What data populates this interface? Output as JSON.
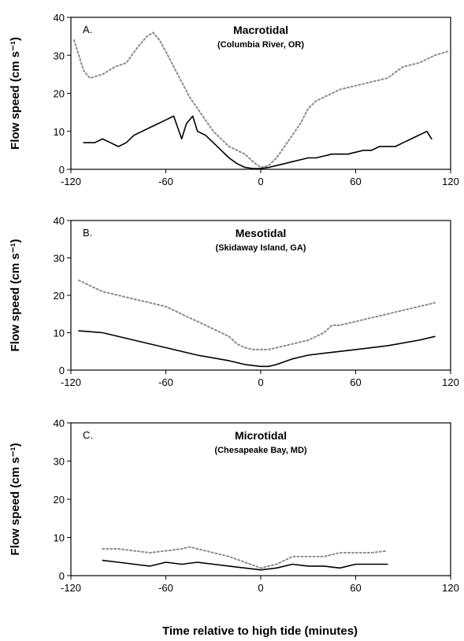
{
  "xlabel": "Time relative to high tide (minutes)",
  "chart_data": [
    {
      "type": "line",
      "letter": "A.",
      "title": "Macrotidal",
      "subtitle": "(Columbia River, OR)",
      "xlabel": "",
      "ylabel": "Flow speed (cm s⁻¹)",
      "xlim": [
        -120,
        120
      ],
      "ylim": [
        0,
        40
      ],
      "xticks": [
        -120,
        -60,
        0,
        60,
        120
      ],
      "yticks": [
        0,
        10,
        20,
        30,
        40
      ],
      "grid": false,
      "series": [
        {
          "style": "dotted",
          "color": "#8a8a8a",
          "x": [
            -118,
            -112,
            -108,
            -100,
            -92,
            -85,
            -78,
            -72,
            -68,
            -64,
            -60,
            -55,
            -50,
            -45,
            -40,
            -35,
            -30,
            -25,
            -20,
            -15,
            -10,
            -5,
            0,
            5,
            10,
            15,
            20,
            25,
            30,
            35,
            40,
            50,
            60,
            70,
            80,
            90,
            100,
            110,
            118
          ],
          "y": [
            34,
            26,
            24,
            25,
            27,
            28,
            32,
            35,
            36,
            34,
            31,
            27,
            23,
            19,
            16,
            13,
            10,
            8,
            6,
            5,
            4,
            2,
            0.5,
            1,
            3,
            6,
            9,
            12,
            16,
            18,
            19,
            21,
            22,
            23,
            24,
            27,
            28,
            30,
            31
          ]
        },
        {
          "style": "solid",
          "color": "#000000",
          "x": [
            -112,
            -105,
            -100,
            -95,
            -90,
            -85,
            -80,
            -75,
            -70,
            -65,
            -60,
            -55,
            -50,
            -47,
            -43,
            -40,
            -35,
            -30,
            -25,
            -20,
            -15,
            -10,
            -5,
            0,
            5,
            10,
            15,
            20,
            25,
            30,
            35,
            40,
            45,
            50,
            55,
            60,
            65,
            70,
            75,
            80,
            85,
            90,
            95,
            100,
            105,
            108
          ],
          "y": [
            7,
            7,
            8,
            7,
            6,
            7,
            9,
            10,
            11,
            12,
            13,
            14,
            8,
            12,
            14,
            10,
            9,
            7,
            5,
            3,
            1.5,
            0.5,
            0.2,
            0.2,
            0.5,
            1,
            1.5,
            2,
            2.5,
            3,
            3,
            3.5,
            4,
            4,
            4,
            4.5,
            5,
            5,
            6,
            6,
            6,
            7,
            8,
            9,
            10,
            8
          ]
        }
      ]
    },
    {
      "type": "line",
      "letter": "B.",
      "title": "Mesotidal",
      "subtitle": "(Skidaway Island, GA)",
      "xlabel": "",
      "ylabel": "Flow speed (cm s⁻¹)",
      "xlim": [
        -120,
        120
      ],
      "ylim": [
        0,
        40
      ],
      "xticks": [
        -120,
        -60,
        0,
        60,
        120
      ],
      "yticks": [
        0,
        10,
        20,
        30,
        40
      ],
      "grid": false,
      "series": [
        {
          "style": "dotted",
          "color": "#8a8a8a",
          "x": [
            -115,
            -110,
            -100,
            -90,
            -80,
            -70,
            -60,
            -50,
            -40,
            -30,
            -20,
            -15,
            -10,
            -5,
            0,
            5,
            10,
            20,
            30,
            40,
            45,
            50,
            60,
            70,
            80,
            90,
            100,
            110
          ],
          "y": [
            24,
            23,
            21,
            20,
            19,
            18,
            17,
            15,
            13,
            11,
            9,
            7,
            6,
            5.5,
            5.5,
            5.5,
            6,
            7,
            8,
            10,
            12,
            12,
            13,
            14,
            15,
            16,
            17,
            18
          ]
        },
        {
          "style": "solid",
          "color": "#000000",
          "x": [
            -115,
            -100,
            -80,
            -60,
            -40,
            -20,
            -10,
            0,
            5,
            10,
            20,
            30,
            40,
            60,
            80,
            100,
            110
          ],
          "y": [
            10.5,
            10,
            8,
            6,
            4,
            2.5,
            1.5,
            1,
            1,
            1.5,
            3,
            4,
            4.5,
            5.5,
            6.5,
            8,
            9
          ]
        }
      ]
    },
    {
      "type": "line",
      "letter": "C.",
      "title": "Microtidal",
      "subtitle": "(Chesapeake Bay, MD)",
      "xlabel": "",
      "ylabel": "Flow speed (cm s⁻¹)",
      "xlim": [
        -120,
        120
      ],
      "ylim": [
        0,
        40
      ],
      "xticks": [
        -120,
        -60,
        0,
        60,
        120
      ],
      "yticks": [
        0,
        10,
        20,
        30,
        40
      ],
      "grid": false,
      "series": [
        {
          "style": "dotted",
          "color": "#8a8a8a",
          "x": [
            -100,
            -90,
            -80,
            -70,
            -60,
            -50,
            -45,
            -40,
            -30,
            -20,
            -10,
            0,
            10,
            20,
            30,
            40,
            50,
            60,
            70,
            80
          ],
          "y": [
            7,
            7,
            6.5,
            6,
            6.5,
            7,
            7.5,
            7,
            6,
            5,
            3.5,
            2,
            3,
            5,
            5,
            5,
            6,
            6,
            6,
            6.5
          ]
        },
        {
          "style": "solid",
          "color": "#000000",
          "x": [
            -100,
            -90,
            -80,
            -70,
            -60,
            -50,
            -40,
            -30,
            -20,
            -10,
            0,
            10,
            20,
            30,
            40,
            50,
            60,
            70,
            80
          ],
          "y": [
            4,
            3.5,
            3,
            2.5,
            3.5,
            3,
            3.5,
            3,
            2.5,
            2,
            1.5,
            2,
            3,
            2.5,
            2.5,
            2,
            3,
            3,
            3
          ]
        }
      ]
    }
  ]
}
